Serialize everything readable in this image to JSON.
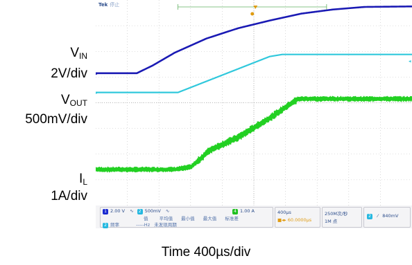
{
  "side_labels": {
    "vin_main": "V",
    "vin_sub": "IN",
    "vin_scale": "2V/div",
    "vout_main": "V",
    "vout_sub": "OUT",
    "vout_scale": "500mV/div",
    "il_main": "I",
    "il_sub": "L",
    "il_scale": "1A/div"
  },
  "scope_header": {
    "brand": "Tek",
    "state": "停止"
  },
  "status_bar": {
    "ch1_num": "1",
    "ch1_scale": "2.00 V",
    "ch2_num": "2",
    "ch2_scale": "500mV",
    "ch4_num": "4",
    "ch4_scale": "1.00 A",
    "meas_value_hdr": "值",
    "meas_mean_hdr": "平均值",
    "meas_min_hdr": "最小值",
    "meas_max_hdr": "最大值",
    "meas_std_hdr": "标准差",
    "meas_ch": "2",
    "meas_name": "频率",
    "meas_value": "-----Hz",
    "meas_note": "未发现周期",
    "horiz_scale": "400µs",
    "horiz_pos": "60.0000µs",
    "sample_rate": "250M次/秒",
    "record_len": "1M 点",
    "trig_ch": "2",
    "trig_level": "840mV"
  },
  "time_label": "Time 400µs/div",
  "colors": {
    "vin": "#1a1ab4",
    "vout": "#30c8dc",
    "il": "#22d022",
    "grid": "#bfbfbf",
    "trigger": "#e09b10"
  },
  "chart_data": {
    "type": "line",
    "title": "",
    "xlabel": "Time 400µs/div",
    "ylabel": "",
    "x_divisions": 10,
    "y_divisions": 8,
    "grid": true,
    "series": [
      {
        "name": "VIN",
        "scale": "2V/div",
        "ground_div": 5.15,
        "points_div": [
          [
            0,
            0
          ],
          [
            1.3,
            0
          ],
          [
            1.8,
            0.3
          ],
          [
            2.5,
            0.8
          ],
          [
            3.5,
            1.35
          ],
          [
            4.5,
            1.75
          ],
          [
            5.5,
            2.05
          ],
          [
            6.5,
            2.32
          ],
          [
            7.5,
            2.48
          ],
          [
            8.5,
            2.58
          ],
          [
            10,
            2.6
          ]
        ]
      },
      {
        "name": "VOUT",
        "scale": "500mV/div",
        "ground_div": 4.4,
        "points_div": [
          [
            0,
            0
          ],
          [
            2.6,
            0
          ],
          [
            5.5,
            1.4
          ],
          [
            5.9,
            1.48
          ],
          [
            10,
            1.48
          ]
        ]
      },
      {
        "name": "IL",
        "scale": "1A/div",
        "ground_div": 1.4,
        "noise_div": 0.12,
        "points_div": [
          [
            0,
            0
          ],
          [
            2.5,
            0
          ],
          [
            3.0,
            0.1
          ],
          [
            3.3,
            0.4
          ],
          [
            3.6,
            0.75
          ],
          [
            4.5,
            1.25
          ],
          [
            5.5,
            2.0
          ],
          [
            6.4,
            2.75
          ],
          [
            10,
            2.75
          ]
        ]
      }
    ]
  }
}
